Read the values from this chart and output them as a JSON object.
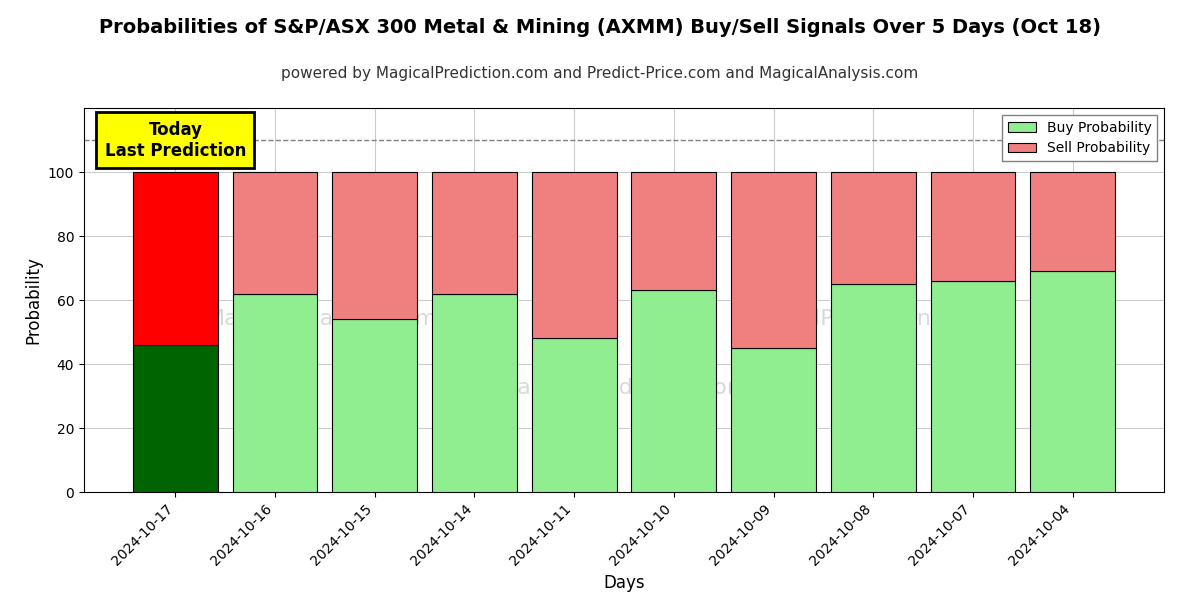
{
  "title": "Probabilities of S&P/ASX 300 Metal & Mining (AXMM) Buy/Sell Signals Over 5 Days (Oct 18)",
  "subtitle": "powered by MagicalPrediction.com and Predict-Price.com and MagicalAnalysis.com",
  "xlabel": "Days",
  "ylabel": "Probability",
  "dates": [
    "2024-10-17",
    "2024-10-16",
    "2024-10-15",
    "2024-10-14",
    "2024-10-11",
    "2024-10-10",
    "2024-10-09",
    "2024-10-08",
    "2024-10-07",
    "2024-10-04"
  ],
  "buy_values": [
    46,
    62,
    54,
    62,
    48,
    63,
    45,
    65,
    66,
    69
  ],
  "sell_values": [
    54,
    38,
    46,
    38,
    52,
    37,
    55,
    35,
    34,
    31
  ],
  "today_buy_color": "#006400",
  "today_sell_color": "#FF0000",
  "buy_color": "#90EE90",
  "sell_color": "#F08080",
  "today_annotation": "Today\nLast Prediction",
  "ylim": [
    0,
    120
  ],
  "yticks": [
    0,
    20,
    40,
    60,
    80,
    100
  ],
  "dashed_line_y": 110,
  "legend_buy": "Buy Probability",
  "legend_sell": "Sell Probability",
  "bg_color": "#ffffff",
  "plot_bg_color": "#ffffff",
  "grid_color": "#cccccc",
  "title_fontsize": 14,
  "subtitle_fontsize": 11,
  "bar_width": 0.85
}
